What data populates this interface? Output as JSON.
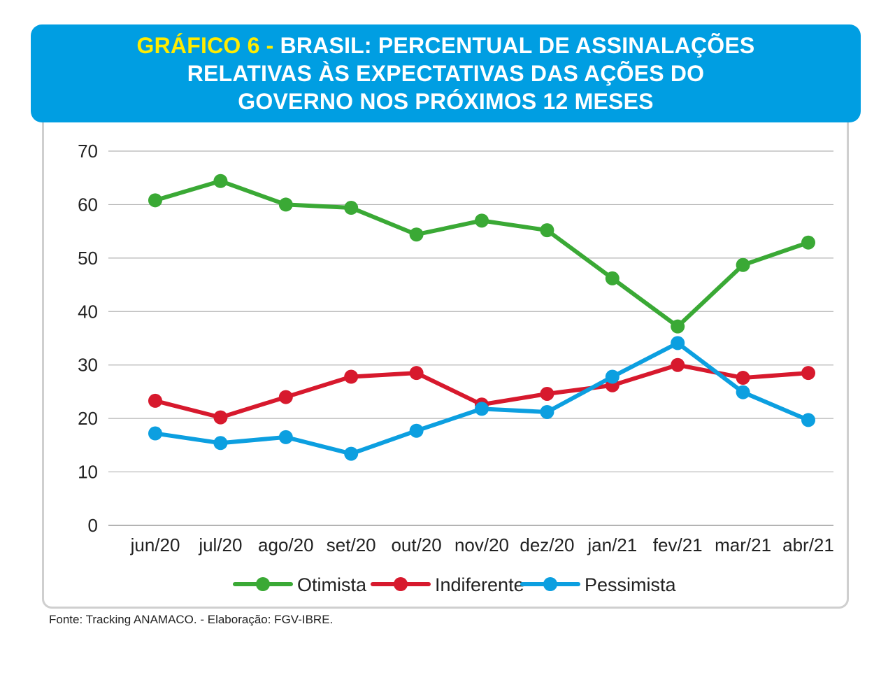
{
  "header": {
    "tag": "GRÁFICO 6 - ",
    "line1": "BRASIL: PERCENTUAL DE ASSINALAÇÕES",
    "line2": "RELATIVAS ÀS EXPECTATIVAS DAS AÇÕES DO",
    "line3": "GOVERNO NOS PRÓXIMOS 12 MESES"
  },
  "source": "Fonte: Tracking ANAMACO. - Elaboração: FGV-IBRE.",
  "chart_data": {
    "type": "line",
    "title": "GRÁFICO 6 - BRASIL: PERCENTUAL DE ASSINALAÇÕES RELATIVAS ÀS EXPECTATIVAS DAS AÇÕES DO GOVERNO NOS PRÓXIMOS 12 MESES",
    "categories": [
      "jun/20",
      "jul/20",
      "ago/20",
      "set/20",
      "out/20",
      "nov/20",
      "dez/20",
      "jan/21",
      "fev/21",
      "mar/21",
      "abr/21"
    ],
    "ylim": [
      0,
      70
    ],
    "yticks": [
      0,
      10,
      20,
      30,
      40,
      50,
      60,
      70
    ],
    "grid": true,
    "legend": "bottom",
    "series": [
      {
        "name": "Otimista",
        "color": "#3aa935",
        "values": [
          60.8,
          64.4,
          60.0,
          59.4,
          54.4,
          57.0,
          55.2,
          46.2,
          37.2,
          48.7,
          52.9
        ]
      },
      {
        "name": "Indiferente",
        "color": "#d7192d",
        "values": [
          23.3,
          20.2,
          24.0,
          27.8,
          28.5,
          22.6,
          24.6,
          26.2,
          30.0,
          27.6,
          28.5
        ]
      },
      {
        "name": "Pessimista",
        "color": "#0c9fe0",
        "values": [
          17.2,
          15.4,
          16.5,
          13.4,
          17.7,
          21.8,
          21.2,
          27.8,
          34.1,
          24.9,
          19.7
        ]
      }
    ]
  }
}
